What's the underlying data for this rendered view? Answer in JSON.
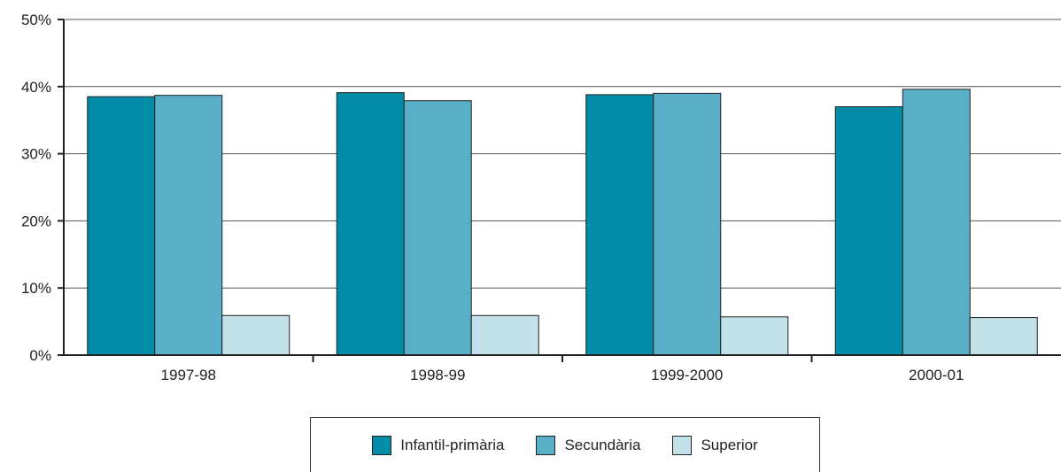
{
  "chart_data": {
    "type": "bar",
    "categories": [
      "1997-98",
      "1998-99",
      "1999-2000",
      "2000-01"
    ],
    "series": [
      {
        "name": "Infantil-primària",
        "values": [
          38.5,
          39.1,
          38.8,
          37.0
        ],
        "color": "#008ba6"
      },
      {
        "name": "Secundària",
        "values": [
          38.7,
          37.9,
          39.0,
          39.6
        ],
        "color": "#5aafc8"
      },
      {
        "name": "Superior",
        "values": [
          5.9,
          5.9,
          5.7,
          5.6
        ],
        "color": "#c3e1e9"
      }
    ],
    "y_ticks": [
      "0%",
      "10%",
      "20%",
      "30%",
      "40%",
      "50%"
    ],
    "ylim": [
      0,
      50
    ],
    "grid": true,
    "legend_position": "bottom"
  }
}
